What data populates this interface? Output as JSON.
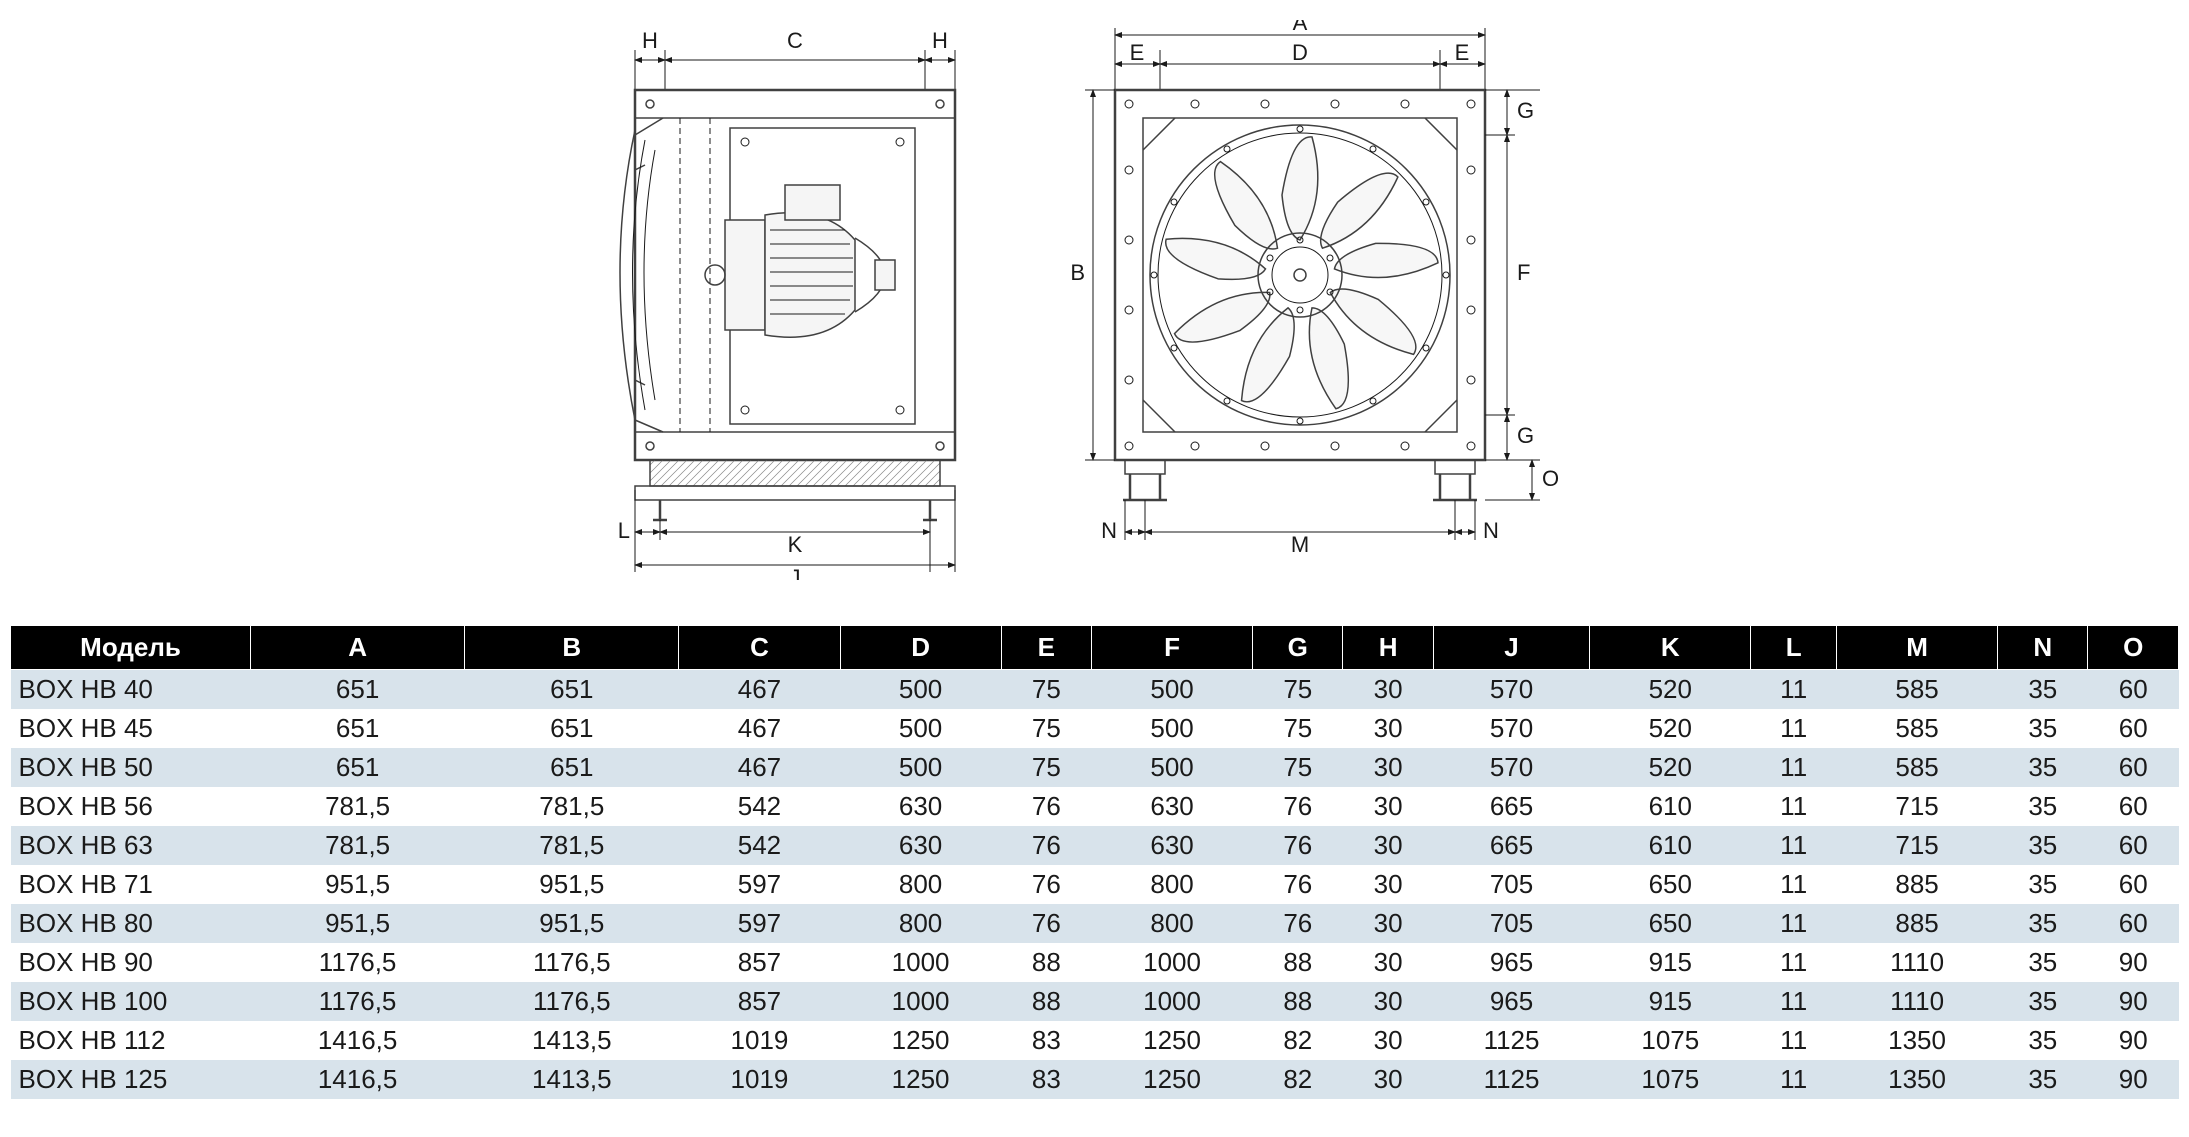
{
  "diagram": {
    "side_labels": {
      "H_left": "H",
      "C": "C",
      "H_right": "H",
      "L": "L",
      "K": "K",
      "J": "J"
    },
    "front_labels": {
      "A": "A",
      "E_left": "E",
      "D": "D",
      "E_right": "E",
      "G_top": "G",
      "F": "F",
      "G_bot": "G",
      "B": "B",
      "O": "O",
      "N_left": "N",
      "M": "M",
      "N_right": "N"
    },
    "colors": {
      "line": "#404040",
      "dim_line": "#1a1a1a",
      "fill_light": "#f5f5f5",
      "background": "#ffffff"
    }
  },
  "table": {
    "header_bg": "#000000",
    "header_fg": "#ffffff",
    "row_alt_bg": "#d8e3eb",
    "row_reg_bg": "#ffffff",
    "text_color": "#1a1a1a",
    "font_size_pt": 18,
    "columns": [
      "Модель",
      "A",
      "B",
      "C",
      "D",
      "E",
      "F",
      "G",
      "H",
      "J",
      "K",
      "L",
      "M",
      "N",
      "O"
    ],
    "rows": [
      [
        "BOX HB 40",
        "651",
        "651",
        "467",
        "500",
        "75",
        "500",
        "75",
        "30",
        "570",
        "520",
        "11",
        "585",
        "35",
        "60"
      ],
      [
        "BOX HB 45",
        "651",
        "651",
        "467",
        "500",
        "75",
        "500",
        "75",
        "30",
        "570",
        "520",
        "11",
        "585",
        "35",
        "60"
      ],
      [
        "BOX HB 50",
        "651",
        "651",
        "467",
        "500",
        "75",
        "500",
        "75",
        "30",
        "570",
        "520",
        "11",
        "585",
        "35",
        "60"
      ],
      [
        "BOX HB 56",
        "781,5",
        "781,5",
        "542",
        "630",
        "76",
        "630",
        "76",
        "30",
        "665",
        "610",
        "11",
        "715",
        "35",
        "60"
      ],
      [
        "BOX HB 63",
        "781,5",
        "781,5",
        "542",
        "630",
        "76",
        "630",
        "76",
        "30",
        "665",
        "610",
        "11",
        "715",
        "35",
        "60"
      ],
      [
        "BOX HB 71",
        "951,5",
        "951,5",
        "597",
        "800",
        "76",
        "800",
        "76",
        "30",
        "705",
        "650",
        "11",
        "885",
        "35",
        "60"
      ],
      [
        "BOX HB 80",
        "951,5",
        "951,5",
        "597",
        "800",
        "76",
        "800",
        "76",
        "30",
        "705",
        "650",
        "11",
        "885",
        "35",
        "60"
      ],
      [
        "BOX HB 90",
        "1176,5",
        "1176,5",
        "857",
        "1000",
        "88",
        "1000",
        "88",
        "30",
        "965",
        "915",
        "11",
        "1110",
        "35",
        "90"
      ],
      [
        "BOX HB 100",
        "1176,5",
        "1176,5",
        "857",
        "1000",
        "88",
        "1000",
        "88",
        "30",
        "965",
        "915",
        "11",
        "1110",
        "35",
        "90"
      ],
      [
        "BOX HB 112",
        "1416,5",
        "1413,5",
        "1019",
        "1250",
        "83",
        "1250",
        "82",
        "30",
        "1125",
        "1075",
        "11",
        "1350",
        "35",
        "90"
      ],
      [
        "BOX HB 125",
        "1416,5",
        "1413,5",
        "1019",
        "1250",
        "83",
        "1250",
        "82",
        "30",
        "1125",
        "1075",
        "11",
        "1350",
        "35",
        "90"
      ]
    ]
  }
}
